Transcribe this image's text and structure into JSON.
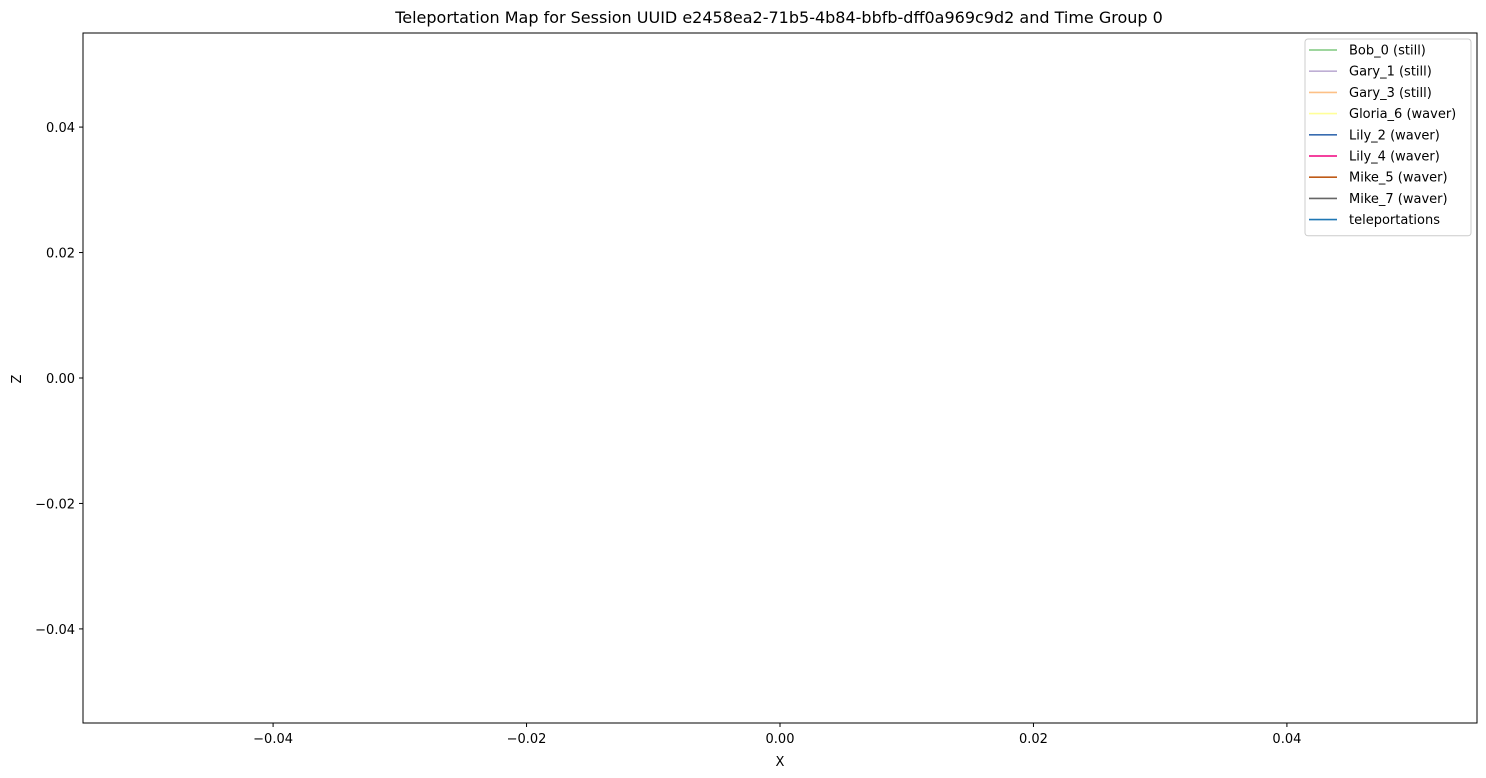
{
  "chart_data": {
    "type": "line",
    "title": "Teleportation Map for Session UUID e2458ea2-71b5-4b84-bbfb-dff0a969c9d2 and Time Group 0",
    "xlabel": "X",
    "ylabel": "Z",
    "xlim": [
      -0.055,
      0.055
    ],
    "ylim": [
      -0.055,
      0.055
    ],
    "xticks": [
      -0.04,
      -0.02,
      0.0,
      0.02,
      0.04
    ],
    "yticks": [
      0.04,
      0.02,
      0.0,
      -0.02,
      -0.04
    ],
    "xtick_labels": [
      "−0.04",
      "−0.02",
      "0.00",
      "0.02",
      "0.04"
    ],
    "ytick_labels": [
      "0.04",
      "0.02",
      "0.00",
      "−0.02",
      "−0.04"
    ],
    "grid": false,
    "legend_position": "top-right",
    "series": [
      {
        "name": "Bob_0 (still)",
        "color": "#7fc97f",
        "x": [],
        "y": []
      },
      {
        "name": "Gary_1 (still)",
        "color": "#beaed4",
        "x": [],
        "y": []
      },
      {
        "name": "Gary_3 (still)",
        "color": "#fdc086",
        "x": [],
        "y": []
      },
      {
        "name": "Gloria_6 (waver)",
        "color": "#ffff99",
        "x": [],
        "y": []
      },
      {
        "name": "Lily_2 (waver)",
        "color": "#386cb0",
        "x": [],
        "y": []
      },
      {
        "name": "Lily_4 (waver)",
        "color": "#f0027f",
        "x": [],
        "y": []
      },
      {
        "name": "Mike_5 (waver)",
        "color": "#bf5b17",
        "x": [],
        "y": []
      },
      {
        "name": "Mike_7 (waver)",
        "color": "#666666",
        "x": [],
        "y": []
      },
      {
        "name": "teleportations",
        "color": "#1f77b4",
        "x": [],
        "y": []
      }
    ]
  }
}
